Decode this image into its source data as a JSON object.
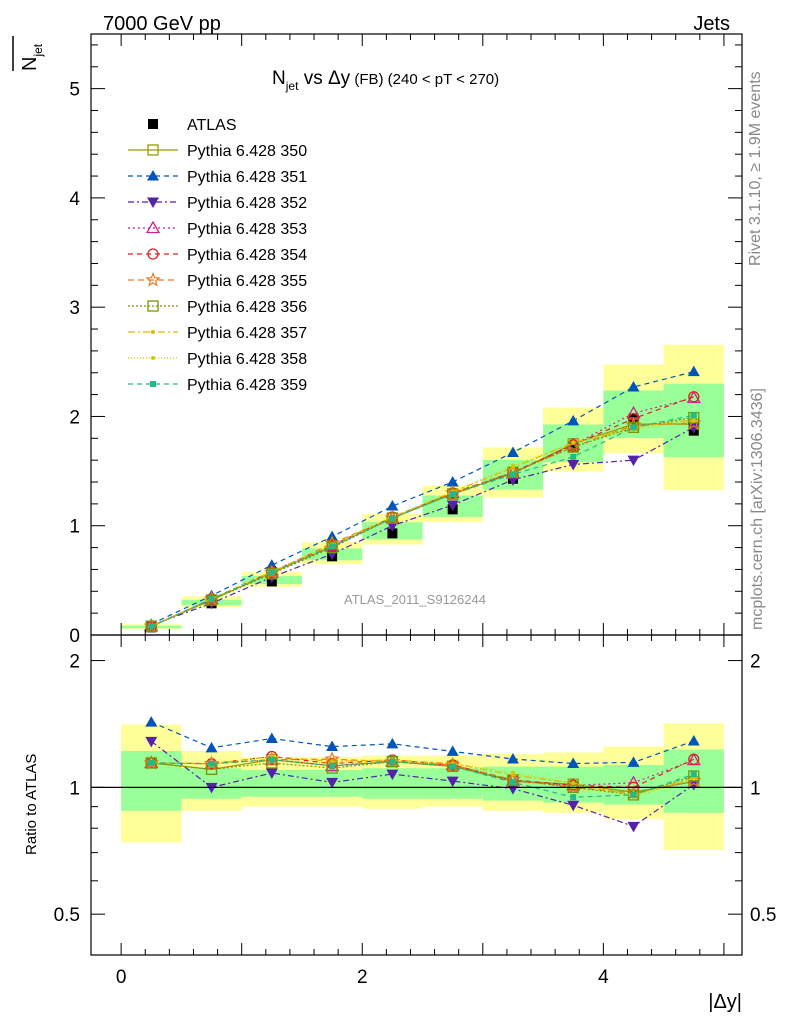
{
  "header": {
    "left": "7000 GeV pp",
    "right": "Jets"
  },
  "side": {
    "rivet": "Rivet 3.1.10, ≥ 1.9M events",
    "mcplots": "mcplots.cern.ch [arXiv:1306.3436]"
  },
  "title": {
    "main": "N",
    "main_sub": "jet",
    "rest": " vs Δy",
    "small": " (FB)",
    "range": " (240 < pT < 270)"
  },
  "analysis_id": "ATLAS_2011_S9126244",
  "chart_data": [
    {
      "type": "scatter",
      "panel": "main",
      "ylabel": "N̄jet",
      "ylim": [
        0,
        5.5
      ],
      "xlim": [
        -0.25,
        5.15
      ],
      "yticks": [
        "0",
        "1",
        "2",
        "3",
        "4",
        "5"
      ],
      "x": [
        0.25,
        0.75,
        1.25,
        1.75,
        2.25,
        2.75,
        3.25,
        3.75,
        4.25,
        4.75
      ],
      "reference_bands": {
        "edges": [
          0,
          0.5,
          1,
          1.5,
          2,
          2.5,
          3,
          3.5,
          4,
          4.5,
          5
        ],
        "green_ratio": [
          [
            0.88,
            1.22
          ],
          [
            0.94,
            1.11
          ],
          [
            0.95,
            1.1
          ],
          [
            0.95,
            1.1
          ],
          [
            0.94,
            1.11
          ],
          [
            0.94,
            1.11
          ],
          [
            0.93,
            1.12
          ],
          [
            0.92,
            1.12
          ],
          [
            0.91,
            1.13
          ],
          [
            0.87,
            1.23
          ]
        ],
        "yellow_ratio": [
          [
            0.74,
            1.41
          ],
          [
            0.88,
            1.22
          ],
          [
            0.9,
            1.18
          ],
          [
            0.9,
            1.18
          ],
          [
            0.89,
            1.19
          ],
          [
            0.9,
            1.19
          ],
          [
            0.88,
            1.2
          ],
          [
            0.87,
            1.21
          ],
          [
            0.84,
            1.25
          ],
          [
            0.71,
            1.42
          ]
        ]
      },
      "series": [
        {
          "name": "ATLAS",
          "color": "#000000",
          "marker": "square-filled",
          "dash": "none",
          "values": [
            0.07,
            0.29,
            0.49,
            0.72,
            0.93,
            1.15,
            1.43,
            1.72,
            1.98,
            1.87
          ]
        },
        {
          "name": "Pythia 6.428 350",
          "color": "#999900",
          "marker": "square-open",
          "dash": "solid",
          "values": [
            0.08,
            0.32,
            0.57,
            0.81,
            1.07,
            1.29,
            1.48,
            1.75,
            1.93,
            1.93
          ]
        },
        {
          "name": "Pythia 6.428 351",
          "color": "#0055bb",
          "marker": "triangle-up-filled",
          "dash": "5,4",
          "values": [
            0.1,
            0.36,
            0.64,
            0.9,
            1.18,
            1.4,
            1.67,
            1.96,
            2.27,
            2.41
          ]
        },
        {
          "name": "Pythia 6.428 352",
          "color": "#5522aa",
          "marker": "triangle-down-filled",
          "dash": "6,3,2,3",
          "values": [
            0.09,
            0.29,
            0.53,
            0.74,
            1.0,
            1.19,
            1.42,
            1.56,
            1.6,
            1.9
          ]
        },
        {
          "name": "Pythia 6.428 353",
          "color": "#cc2288",
          "marker": "triangle-up-open",
          "dash": "2,3",
          "values": [
            0.08,
            0.33,
            0.57,
            0.81,
            1.07,
            1.3,
            1.48,
            1.74,
            2.03,
            2.17
          ]
        },
        {
          "name": "Pythia 6.428 354",
          "color": "#dd2222",
          "marker": "circle-open",
          "dash": "5,4",
          "values": [
            0.08,
            0.33,
            0.58,
            0.82,
            1.08,
            1.3,
            1.49,
            1.74,
            1.98,
            2.18
          ]
        },
        {
          "name": "Pythia 6.428 355",
          "color": "#ee7722",
          "marker": "star-open",
          "dash": "6,4",
          "values": [
            0.08,
            0.33,
            0.57,
            0.84,
            1.07,
            1.3,
            1.49,
            1.72,
            1.92,
            1.94
          ]
        },
        {
          "name": "Pythia 6.428 356",
          "color": "#779900",
          "marker": "square-open",
          "dash": "2,2",
          "values": [
            0.08,
            0.32,
            0.56,
            0.8,
            1.07,
            1.29,
            1.49,
            1.72,
            1.9,
            1.99
          ]
        },
        {
          "name": "Pythia 6.428 357",
          "color": "#ddbb00",
          "marker": "small-dot",
          "dash": "7,3,2,3",
          "values": [
            0.08,
            0.33,
            0.58,
            0.83,
            1.08,
            1.31,
            1.53,
            1.76,
            1.9,
            1.97
          ]
        },
        {
          "name": "Pythia 6.428 358",
          "color": "#cccc00",
          "marker": "small-dot",
          "dash": "1,2",
          "values": [
            0.08,
            0.33,
            0.57,
            0.82,
            1.07,
            1.31,
            1.55,
            1.76,
            1.88,
            1.96
          ]
        },
        {
          "name": "Pythia 6.428 359",
          "color": "#22bb88",
          "marker": "small-square",
          "dash": "5,4",
          "values": [
            0.08,
            0.33,
            0.57,
            0.81,
            1.07,
            1.29,
            1.47,
            1.63,
            1.9,
            2.01
          ]
        }
      ]
    },
    {
      "type": "line",
      "panel": "ratio",
      "ylabel": "Ratio to ATLAS",
      "xlabel": "|Δy|",
      "ylim": [
        0.4,
        2.3
      ],
      "log_y": true,
      "xticks": [
        "0",
        "2",
        "4"
      ],
      "yticks": [
        "0.5",
        "1",
        "2"
      ]
    }
  ]
}
